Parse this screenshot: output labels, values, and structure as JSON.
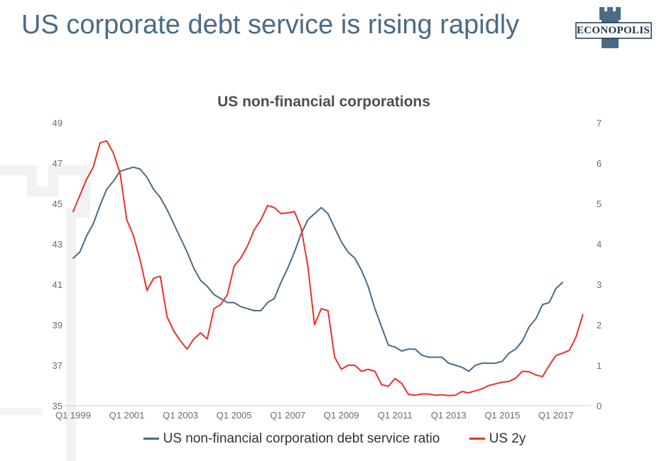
{
  "slide": {
    "title": "US corporate debt service is rising rapidly",
    "logo_text": "ECONOPOLIS"
  },
  "colors": {
    "title": "#4a6b85",
    "ratio_line": "#4a6b85",
    "yield_line": "#e8322b",
    "logo": "#4a6b85"
  },
  "chart_data": {
    "type": "line",
    "title": "US non-financial corporations",
    "x_tick_labels": [
      "Q1 1999",
      "Q1 2001",
      "Q1 2003",
      "Q1 2005",
      "Q1 2007",
      "Q1 2009",
      "Q1 2011",
      "Q1 2013",
      "Q1 2015",
      "Q1 2017"
    ],
    "x_range": [
      1999.0,
      2018.25
    ],
    "y_left": {
      "range": [
        35,
        49
      ],
      "ticks": [
        35,
        37,
        39,
        41,
        43,
        45,
        47,
        49
      ]
    },
    "y_right": {
      "range": [
        0,
        7
      ],
      "ticks": [
        0,
        1,
        2,
        3,
        4,
        5,
        6,
        7
      ]
    },
    "legend_position": "bottom-center",
    "grid": false,
    "series": [
      {
        "name": "US non-financial corporation debt service ratio",
        "axis": "left",
        "color": "#4a6b85",
        "points": [
          [
            1999.0,
            42.3
          ],
          [
            1999.25,
            42.6
          ],
          [
            1999.5,
            43.4
          ],
          [
            1999.75,
            44.0
          ],
          [
            2000.0,
            44.9
          ],
          [
            2000.25,
            45.7
          ],
          [
            2000.5,
            46.1
          ],
          [
            2000.75,
            46.6
          ],
          [
            2001.0,
            46.7
          ],
          [
            2001.25,
            46.8
          ],
          [
            2001.5,
            46.7
          ],
          [
            2001.75,
            46.3
          ],
          [
            2002.0,
            45.7
          ],
          [
            2002.25,
            45.3
          ],
          [
            2002.5,
            44.7
          ],
          [
            2002.75,
            44.0
          ],
          [
            2003.0,
            43.3
          ],
          [
            2003.25,
            42.6
          ],
          [
            2003.5,
            41.8
          ],
          [
            2003.75,
            41.2
          ],
          [
            2004.0,
            40.9
          ],
          [
            2004.25,
            40.5
          ],
          [
            2004.5,
            40.3
          ],
          [
            2004.75,
            40.1
          ],
          [
            2005.0,
            40.1
          ],
          [
            2005.25,
            39.9
          ],
          [
            2005.5,
            39.8
          ],
          [
            2005.75,
            39.7
          ],
          [
            2006.0,
            39.7
          ],
          [
            2006.25,
            40.1
          ],
          [
            2006.5,
            40.3
          ],
          [
            2006.75,
            41.1
          ],
          [
            2007.0,
            41.8
          ],
          [
            2007.25,
            42.6
          ],
          [
            2007.5,
            43.5
          ],
          [
            2007.75,
            44.2
          ],
          [
            2008.0,
            44.5
          ],
          [
            2008.25,
            44.8
          ],
          [
            2008.5,
            44.5
          ],
          [
            2008.75,
            43.8
          ],
          [
            2009.0,
            43.1
          ],
          [
            2009.25,
            42.6
          ],
          [
            2009.5,
            42.3
          ],
          [
            2009.75,
            41.7
          ],
          [
            2010.0,
            40.9
          ],
          [
            2010.25,
            39.8
          ],
          [
            2010.5,
            38.9
          ],
          [
            2010.75,
            38.0
          ],
          [
            2011.0,
            37.9
          ],
          [
            2011.25,
            37.7
          ],
          [
            2011.5,
            37.8
          ],
          [
            2011.75,
            37.8
          ],
          [
            2012.0,
            37.5
          ],
          [
            2012.25,
            37.4
          ],
          [
            2012.5,
            37.4
          ],
          [
            2012.75,
            37.4
          ],
          [
            2013.0,
            37.1
          ],
          [
            2013.25,
            37.0
          ],
          [
            2013.5,
            36.9
          ],
          [
            2013.75,
            36.7
          ],
          [
            2014.0,
            37.0
          ],
          [
            2014.25,
            37.1
          ],
          [
            2014.5,
            37.1
          ],
          [
            2014.75,
            37.1
          ],
          [
            2015.0,
            37.2
          ],
          [
            2015.25,
            37.6
          ],
          [
            2015.5,
            37.8
          ],
          [
            2015.75,
            38.2
          ],
          [
            2016.0,
            38.9
          ],
          [
            2016.25,
            39.3
          ],
          [
            2016.5,
            40.0
          ],
          [
            2016.75,
            40.1
          ],
          [
            2017.0,
            40.8
          ],
          [
            2017.25,
            41.1
          ]
        ]
      },
      {
        "name": "US 2y",
        "axis": "right",
        "color": "#e8322b",
        "points": [
          [
            1999.0,
            4.8
          ],
          [
            1999.25,
            5.2
          ],
          [
            1999.5,
            5.6
          ],
          [
            1999.75,
            5.9
          ],
          [
            2000.0,
            6.5
          ],
          [
            2000.25,
            6.55
          ],
          [
            2000.5,
            6.25
          ],
          [
            2000.75,
            5.75
          ],
          [
            2001.0,
            4.6
          ],
          [
            2001.25,
            4.2
          ],
          [
            2001.5,
            3.6
          ],
          [
            2001.75,
            2.85
          ],
          [
            2002.0,
            3.15
          ],
          [
            2002.25,
            3.2
          ],
          [
            2002.5,
            2.2
          ],
          [
            2002.75,
            1.85
          ],
          [
            2003.0,
            1.6
          ],
          [
            2003.25,
            1.4
          ],
          [
            2003.5,
            1.65
          ],
          [
            2003.75,
            1.8
          ],
          [
            2004.0,
            1.65
          ],
          [
            2004.25,
            2.4
          ],
          [
            2004.5,
            2.5
          ],
          [
            2004.75,
            2.75
          ],
          [
            2005.0,
            3.45
          ],
          [
            2005.25,
            3.65
          ],
          [
            2005.5,
            3.95
          ],
          [
            2005.75,
            4.35
          ],
          [
            2006.0,
            4.6
          ],
          [
            2006.25,
            4.95
          ],
          [
            2006.5,
            4.9
          ],
          [
            2006.75,
            4.75
          ],
          [
            2007.0,
            4.77
          ],
          [
            2007.25,
            4.8
          ],
          [
            2007.5,
            4.4
          ],
          [
            2007.75,
            3.45
          ],
          [
            2008.0,
            2.0
          ],
          [
            2008.25,
            2.4
          ],
          [
            2008.5,
            2.35
          ],
          [
            2008.75,
            1.2
          ],
          [
            2009.0,
            0.9
          ],
          [
            2009.25,
            1.0
          ],
          [
            2009.5,
            1.0
          ],
          [
            2009.75,
            0.85
          ],
          [
            2010.0,
            0.9
          ],
          [
            2010.25,
            0.85
          ],
          [
            2010.5,
            0.52
          ],
          [
            2010.75,
            0.48
          ],
          [
            2011.0,
            0.67
          ],
          [
            2011.25,
            0.55
          ],
          [
            2011.5,
            0.28
          ],
          [
            2011.75,
            0.26
          ],
          [
            2012.0,
            0.29
          ],
          [
            2012.25,
            0.29
          ],
          [
            2012.5,
            0.26
          ],
          [
            2012.75,
            0.27
          ],
          [
            2013.0,
            0.25
          ],
          [
            2013.25,
            0.26
          ],
          [
            2013.5,
            0.35
          ],
          [
            2013.75,
            0.32
          ],
          [
            2014.0,
            0.37
          ],
          [
            2014.25,
            0.42
          ],
          [
            2014.5,
            0.5
          ],
          [
            2014.75,
            0.54
          ],
          [
            2015.0,
            0.58
          ],
          [
            2015.25,
            0.6
          ],
          [
            2015.5,
            0.68
          ],
          [
            2015.75,
            0.85
          ],
          [
            2016.0,
            0.84
          ],
          [
            2016.25,
            0.76
          ],
          [
            2016.5,
            0.72
          ],
          [
            2016.75,
            1.0
          ],
          [
            2017.0,
            1.24
          ],
          [
            2017.25,
            1.3
          ],
          [
            2017.5,
            1.37
          ],
          [
            2017.75,
            1.7
          ],
          [
            2018.0,
            2.25
          ]
        ]
      }
    ]
  }
}
